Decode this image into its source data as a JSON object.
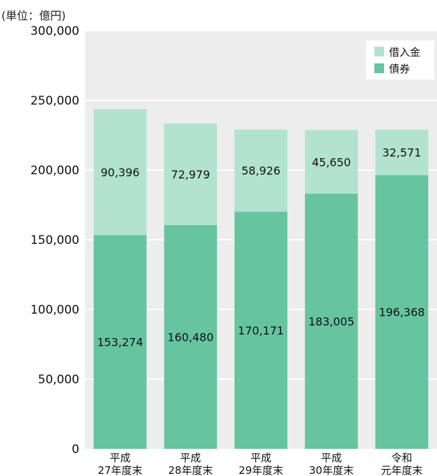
{
  "chart_data": {
    "type": "bar",
    "stacked": true,
    "unit_label": "(単位：億円)",
    "categories": [
      [
        "平成",
        "27年度末"
      ],
      [
        "平成",
        "28年度末"
      ],
      [
        "平成",
        "29年度末"
      ],
      [
        "平成",
        "30年度末"
      ],
      [
        "令和",
        "元年度末"
      ]
    ],
    "series": [
      {
        "name": "債券",
        "values": [
          153274,
          160480,
          170171,
          183005,
          196368
        ],
        "color": "#66c4a0"
      },
      {
        "name": "借入金",
        "values": [
          90396,
          72979,
          58926,
          45650,
          32571
        ],
        "color": "#b2e2d0"
      }
    ],
    "value_labels": {
      "債券": [
        "153,274",
        "160,480",
        "170,171",
        "183,005",
        "196,368"
      ],
      "借入金": [
        "90,396",
        "72,979",
        "58,926",
        "45,650",
        "32,571"
      ]
    },
    "yticks": [
      "0",
      "50,000",
      "100,000",
      "150,000",
      "200,000",
      "250,000",
      "300,000"
    ],
    "ylim": [
      0,
      300000
    ],
    "legend": {
      "placement": "top-right",
      "order": [
        "借入金",
        "債券"
      ]
    },
    "grid": true,
    "plot_background": "#ededed"
  }
}
